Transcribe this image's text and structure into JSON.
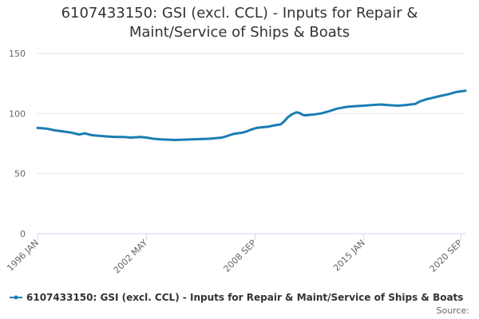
{
  "chart_data": {
    "type": "line",
    "title_lines": [
      "6107433150: GSI (excl. CCL) - Inputs for Repair &",
      "Maint/Service of Ships & Boats"
    ],
    "xlabel": "",
    "ylabel": "",
    "ylim": [
      0,
      150
    ],
    "y_ticks": [
      0,
      50,
      100,
      150
    ],
    "x_range": [
      "1996-01",
      "2020-12"
    ],
    "x_ticks": [
      {
        "label": "1996 JAN",
        "date": "1996-01"
      },
      {
        "label": "2002 MAY",
        "date": "2002-05"
      },
      {
        "label": "2008 SEP",
        "date": "2008-09"
      },
      {
        "label": "2015 JAN",
        "date": "2015-01"
      },
      {
        "label": "2020 SEP",
        "date": "2020-09"
      }
    ],
    "grid": "horizontal",
    "legend_position": "bottom",
    "series": [
      {
        "name": "6107433150: GSI (excl. CCL) - Inputs for Repair & Maint/Service of Ships & Boats",
        "color": "#1a7db3",
        "points": [
          [
            "1996-01",
            88
          ],
          [
            "1996-07",
            87.5
          ],
          [
            "1997-01",
            86
          ],
          [
            "1997-07",
            85
          ],
          [
            "1998-01",
            84
          ],
          [
            "1998-06",
            82.5
          ],
          [
            "1998-10",
            83.5
          ],
          [
            "1999-03",
            82
          ],
          [
            "2000-01",
            81
          ],
          [
            "2000-07",
            80.5
          ],
          [
            "2001-01",
            80.5
          ],
          [
            "2001-06",
            80
          ],
          [
            "2002-01",
            80.5
          ],
          [
            "2002-05",
            80
          ],
          [
            "2002-10",
            79
          ],
          [
            "2003-03",
            78.5
          ],
          [
            "2004-01",
            78
          ],
          [
            "2005-01",
            78.5
          ],
          [
            "2006-01",
            79
          ],
          [
            "2006-10",
            80
          ],
          [
            "2007-06",
            83
          ],
          [
            "2007-12",
            84
          ],
          [
            "2008-03",
            85
          ],
          [
            "2008-06",
            86.5
          ],
          [
            "2008-10",
            88
          ],
          [
            "2009-01",
            88.5
          ],
          [
            "2009-06",
            89
          ],
          [
            "2009-10",
            90
          ],
          [
            "2010-03",
            91
          ],
          [
            "2010-05",
            93
          ],
          [
            "2010-08",
            97
          ],
          [
            "2010-11",
            99.5
          ],
          [
            "2011-02",
            101
          ],
          [
            "2011-04",
            100.5
          ],
          [
            "2011-06",
            99
          ],
          [
            "2011-08",
            98.5
          ],
          [
            "2012-01",
            99
          ],
          [
            "2012-07",
            100
          ],
          [
            "2013-01",
            102
          ],
          [
            "2013-06",
            104
          ],
          [
            "2014-01",
            105.5
          ],
          [
            "2014-06",
            106
          ],
          [
            "2015-01",
            106.5
          ],
          [
            "2015-06",
            107
          ],
          [
            "2016-01",
            107.5
          ],
          [
            "2016-06",
            107
          ],
          [
            "2017-01",
            106.5
          ],
          [
            "2017-06",
            107
          ],
          [
            "2018-01",
            108
          ],
          [
            "2018-04",
            110
          ],
          [
            "2018-09",
            112
          ],
          [
            "2019-01",
            113
          ],
          [
            "2019-06",
            114.5
          ],
          [
            "2019-12",
            116
          ],
          [
            "2020-03",
            117
          ],
          [
            "2020-06",
            118
          ],
          [
            "2020-09",
            118.5
          ],
          [
            "2020-12",
            119
          ]
        ]
      }
    ],
    "source_label": "Source:"
  }
}
